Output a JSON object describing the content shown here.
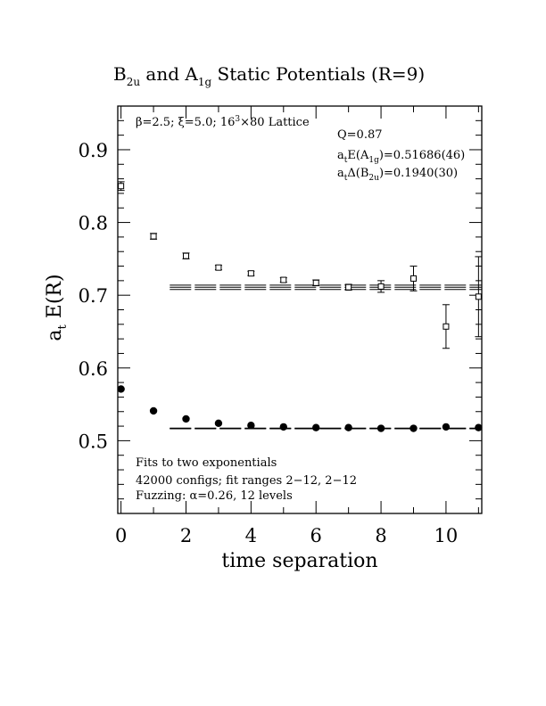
{
  "chart_data": {
    "type": "scatter",
    "title": "B",
    "title_sub1": "2u",
    "title_mid": " and A",
    "title_sub2": "1g",
    "title_rest": " Static Potentials (R=9)",
    "xlabel": "time separation",
    "ylabel_a": "a",
    "ylabel_sub": "t",
    "ylabel_rest": " E(R)",
    "xlim": [
      -0.1,
      11.1
    ],
    "ylim": [
      0.4,
      0.96
    ],
    "x_ticks": [
      0,
      2,
      4,
      6,
      8,
      10
    ],
    "x_tick_labels": [
      "0",
      "2",
      "4",
      "6",
      "8",
      "10"
    ],
    "y_ticks": [
      0.5,
      0.6,
      0.7,
      0.8,
      0.9
    ],
    "y_tick_labels": [
      "0.5",
      "0.6",
      "0.7",
      "0.8",
      "0.9"
    ],
    "annotations": {
      "lattice_beta": "β=2.5; ",
      "lattice_xi": "ξ=5.0; 16",
      "lattice_exp": "3",
      "lattice_rest": "×80 Lattice",
      "q": "Q=0.87",
      "a1g_a": "a",
      "a1g_t": "t",
      "a1g_e": "E(A",
      "a1g_sub": "1g",
      "a1g_val": ")=0.51686(46)",
      "b2u_a": "a",
      "b2u_t": "t",
      "b2u_d": "Δ(B",
      "b2u_sub": "2u",
      "b2u_val": ")=0.1940(30)",
      "fits": "Fits to two exponentials",
      "configs": "42000 configs; fit ranges 2−12, 2−12",
      "fuzzing_pre": "Fuzzing: ",
      "fuzzing_alpha": "α",
      "fuzzing_post": "=0.26, 12 levels"
    },
    "series": [
      {
        "marker": "open-square",
        "x": [
          0,
          1,
          2,
          3,
          4,
          5,
          6,
          7,
          8,
          9,
          10,
          11
        ],
        "y": [
          0.85,
          0.781,
          0.754,
          0.738,
          0.73,
          0.721,
          0.717,
          0.711,
          0.712,
          0.723,
          0.657,
          0.698
        ],
        "err": [
          0.006,
          0.004,
          0.004,
          0.003,
          0.003,
          0.003,
          0.004,
          0.004,
          0.008,
          0.017,
          0.03,
          0.055
        ]
      },
      {
        "marker": "filled-circle",
        "x": [
          0,
          1,
          2,
          3,
          4,
          5,
          6,
          7,
          8,
          9,
          10,
          11
        ],
        "y": [
          0.571,
          0.541,
          0.53,
          0.524,
          0.521,
          0.519,
          0.518,
          0.518,
          0.517,
          0.517,
          0.519,
          0.518
        ],
        "err": [
          0,
          0,
          0,
          0,
          0,
          0,
          0,
          0,
          0,
          0,
          0,
          0
        ]
      }
    ],
    "fit_bands": [
      {
        "x_range": [
          1.5,
          11.1
        ],
        "center": 0.7109,
        "lower": 0.7079,
        "upper": 0.7139
      },
      {
        "x_range": [
          1.5,
          11.1
        ],
        "center": 0.5169,
        "lower": 0.5164,
        "upper": 0.5173
      }
    ]
  }
}
